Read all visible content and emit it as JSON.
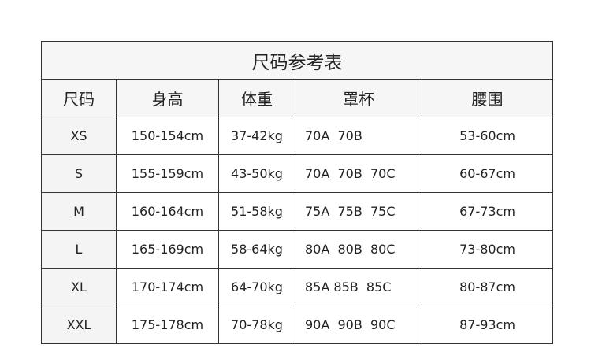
{
  "title": "尺码参考表",
  "headers": [
    "尺码",
    "身高",
    "体重",
    "罩杯",
    "腰围"
  ],
  "rows": [
    [
      "XS",
      "150-154cm",
      "37-42kg",
      "70A  70B",
      "53-60cm"
    ],
    [
      "S",
      "155-159cm",
      "43-50kg",
      "70A  70B  70C",
      "60-67cm"
    ],
    [
      "M",
      "160-164cm",
      "51-58kg",
      "75A  75B  75C",
      "67-73cm"
    ],
    [
      "L",
      "165-169cm",
      "58-64kg",
      "80A  80B  80C",
      "73-80cm"
    ],
    [
      "XL",
      "170-174cm",
      "64-70kg",
      "85A 85B  85C",
      "80-87cm"
    ],
    [
      "XXL",
      "175-178cm",
      "70-78kg",
      "90A  90B  90C",
      "87-93cm"
    ]
  ]
}
